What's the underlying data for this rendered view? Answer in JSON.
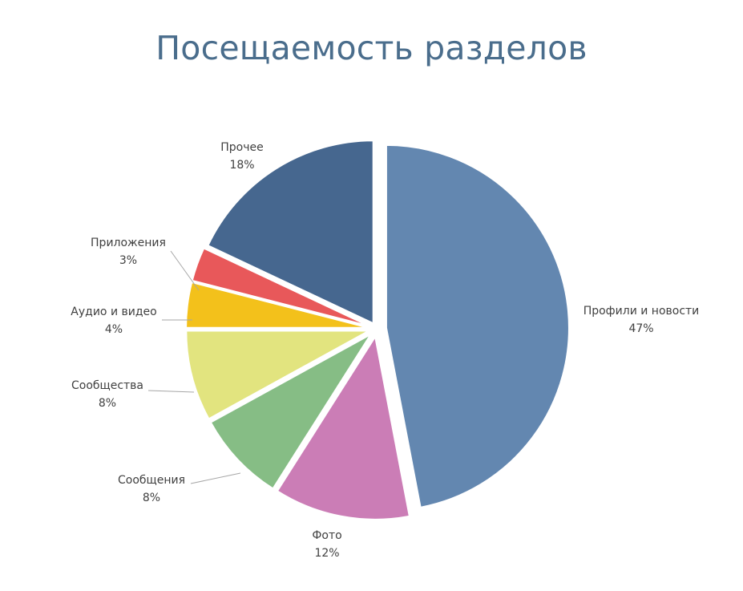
{
  "chart_data": {
    "type": "pie",
    "title": "Посещаемость разделов",
    "slices": [
      {
        "label": "Профили и новости",
        "value": 47,
        "display": "47%",
        "color": "#6387b0"
      },
      {
        "label": "Фото",
        "value": 12,
        "display": "12%",
        "color": "#cb7db6"
      },
      {
        "label": "Сообщения",
        "value": 8,
        "display": "8%",
        "color": "#86bd85"
      },
      {
        "label": "Сообщества",
        "value": 8,
        "display": "8%",
        "color": "#e2e47f"
      },
      {
        "label": "Аудио и видео",
        "value": 4,
        "display": "4%",
        "color": "#f3c11b"
      },
      {
        "label": "Приложения",
        "value": 3,
        "display": "3%",
        "color": "#e8585a"
      },
      {
        "label": "Прочее",
        "value": 18,
        "display": "18%",
        "color": "#46678f"
      }
    ]
  }
}
